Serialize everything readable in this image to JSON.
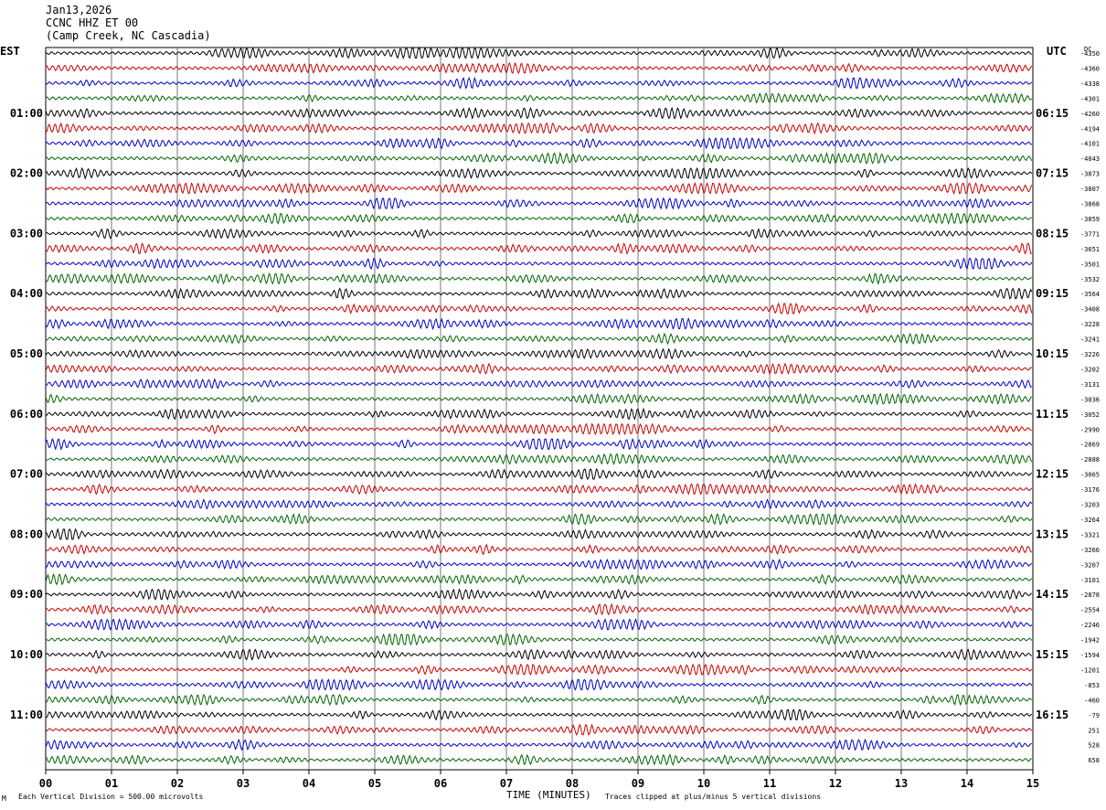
{
  "header": {
    "date": "Jan13,2026",
    "station": "CCNC HHZ ET 00",
    "location": "(Camp Creek, NC Cascadia)"
  },
  "left_axis_title": "EST",
  "right_axis_title": "UTC",
  "dc_label": "DC",
  "footer": {
    "scale_note": "Each Vertical Division =  500.00 microvolts",
    "xlabel": "TIME (MINUTES)",
    "clip_note": "Traces clipped at plus/minus 5 vertical divisions",
    "corner_mark": "M"
  },
  "chart_data": {
    "type": "line",
    "xlabel": "TIME (MINUTES)",
    "xlim": [
      0,
      15
    ],
    "x_ticks": [
      "00",
      "01",
      "02",
      "03",
      "04",
      "05",
      "06",
      "07",
      "08",
      "09",
      "10",
      "11",
      "12",
      "13",
      "14",
      "15"
    ],
    "traces_per_hour": 4,
    "trace_colors": [
      "#000000",
      "#cc0000",
      "#0000cc",
      "#006600"
    ],
    "est_labels": [
      "",
      "01:00",
      "02:00",
      "03:00",
      "04:00",
      "05:00",
      "06:00",
      "07:00",
      "08:00",
      "09:00",
      "10:00",
      "11:00"
    ],
    "utc_labels": [
      "",
      "06:15",
      "07:15",
      "08:15",
      "09:15",
      "10:15",
      "11:15",
      "12:15",
      "13:15",
      "14:15",
      "15:15",
      "16:15"
    ],
    "dc_offsets": [
      "-4350",
      "-4360",
      "-4338",
      "-4301",
      "-4260",
      "-4194",
      "-4101",
      "-4043",
      "-3873",
      "-3807",
      "-3868",
      "-3859",
      "-3771",
      "-3651",
      "-3501",
      "-3532",
      "-3564",
      "-3408",
      "-3228",
      "-3241",
      "-3226",
      "-3202",
      "-3131",
      "-3036",
      "-3052",
      "-2990",
      "-2869",
      "-2888",
      "-3065",
      "-3176",
      "-3203",
      "-3264",
      "-3321",
      "-3266",
      "-3207",
      "-3101",
      "-2878",
      "-2554",
      "-2246",
      "-1942",
      "-1594",
      "-1201",
      "-853",
      "-460",
      "-79",
      "251",
      "528",
      "658"
    ]
  }
}
